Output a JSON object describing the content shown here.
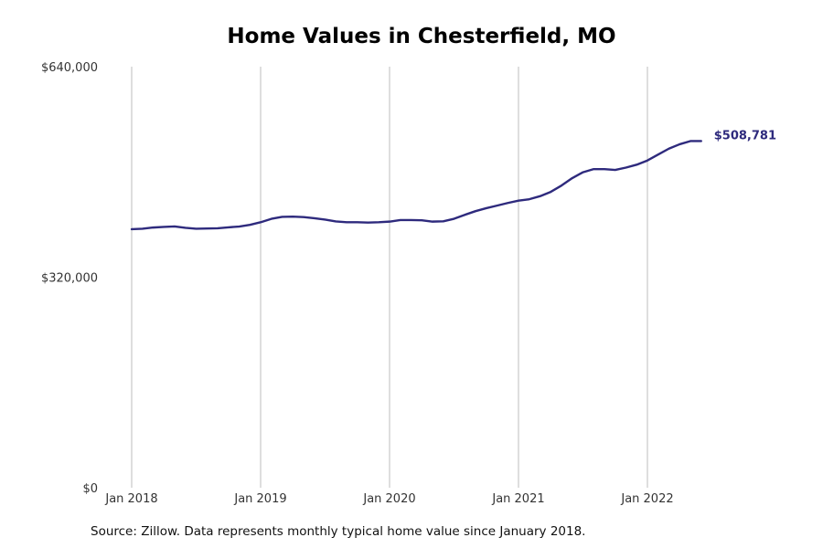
{
  "chart_data": {
    "type": "line",
    "title": "Home Values in Chesterfield, MO",
    "xlabel": "",
    "ylabel": "",
    "ylim": [
      0,
      640000
    ],
    "y_ticks": [
      {
        "value": 0,
        "label": "$0"
      },
      {
        "value": 320000,
        "label": "$320,000"
      },
      {
        "value": 640000,
        "label": "$640,000"
      }
    ],
    "x_ticks": [
      {
        "value": "2018-01",
        "label": "Jan 2018"
      },
      {
        "value": "2019-01",
        "label": "Jan 2019"
      },
      {
        "value": "2020-01",
        "label": "Jan 2020"
      },
      {
        "value": "2021-01",
        "label": "Jan 2021"
      },
      {
        "value": "2022-01",
        "label": "Jan 2022"
      }
    ],
    "grid": {
      "vertical": true,
      "horizontal": false
    },
    "line_color": "#2e2a7d",
    "series": [
      {
        "x": [
          "2018-01",
          "2018-02",
          "2018-03",
          "2018-04",
          "2018-05",
          "2018-06",
          "2018-07",
          "2018-08",
          "2018-09",
          "2018-10",
          "2018-11",
          "2018-12",
          "2019-01",
          "2019-02",
          "2019-03",
          "2019-04",
          "2019-05",
          "2019-06",
          "2019-07",
          "2019-08",
          "2019-09",
          "2019-10",
          "2019-11",
          "2019-12",
          "2020-01",
          "2020-02",
          "2020-03",
          "2020-04",
          "2020-05",
          "2020-06",
          "2020-07",
          "2020-08",
          "2020-09",
          "2020-10",
          "2020-11",
          "2020-12",
          "2021-01",
          "2021-02",
          "2021-03",
          "2021-04",
          "2021-05",
          "2021-06",
          "2021-07",
          "2021-08",
          "2021-09",
          "2021-10",
          "2021-11",
          "2021-12",
          "2022-01",
          "2022-02",
          "2022-03",
          "2022-04",
          "2022-05",
          "2022-06"
        ],
        "values": [
          393000,
          393700,
          395500,
          396400,
          397100,
          395000,
          393700,
          394000,
          394400,
          395800,
          397000,
          399600,
          403500,
          408700,
          411700,
          412100,
          411300,
          409600,
          407500,
          404800,
          403500,
          403500,
          403000,
          403500,
          404500,
          406800,
          406800,
          406500,
          404500,
          405000,
          408800,
          414800,
          420400,
          424900,
          428800,
          432800,
          436400,
          438500,
          443100,
          449700,
          459300,
          470600,
          479500,
          484300,
          484300,
          483000,
          486600,
          491000,
          497400,
          506400,
          515400,
          522100,
          526900,
          508781
        ],
        "end_label": "$508,781"
      }
    ]
  },
  "source_note": "Source: Zillow. Data represents monthly typical home value since January 2018."
}
